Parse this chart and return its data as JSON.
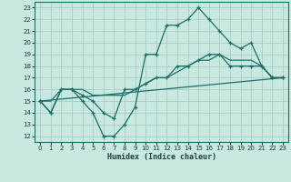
{
  "xlabel": "Humidex (Indice chaleur)",
  "bg_color": "#c8e8e0",
  "grid_color": "#a8ccc8",
  "line_color": "#1a7068",
  "xlim": [
    -0.5,
    23.5
  ],
  "ylim": [
    11.5,
    23.5
  ],
  "yticks": [
    12,
    13,
    14,
    15,
    16,
    17,
    18,
    19,
    20,
    21,
    22,
    23
  ],
  "xticks": [
    0,
    1,
    2,
    3,
    4,
    5,
    6,
    7,
    8,
    9,
    10,
    11,
    12,
    13,
    14,
    15,
    16,
    17,
    18,
    19,
    20,
    21,
    22,
    23
  ],
  "line1_x": [
    0,
    1,
    2,
    3,
    4,
    5,
    6,
    7,
    8,
    9,
    10,
    11,
    12,
    13,
    14,
    15,
    16,
    17,
    18,
    19,
    20,
    21,
    22,
    23
  ],
  "line1_y": [
    15,
    14,
    16,
    16,
    15,
    14,
    12,
    12,
    13,
    14.5,
    19,
    19,
    21.5,
    21.5,
    22,
    23,
    22,
    21,
    20,
    19.5,
    20,
    18,
    17,
    17
  ],
  "line2_x": [
    0,
    1,
    2,
    3,
    4,
    5,
    6,
    7,
    8,
    9,
    10,
    11,
    12,
    13,
    14,
    15,
    16,
    17,
    18,
    19,
    20,
    21,
    22,
    23
  ],
  "line2_y": [
    15,
    14,
    16,
    16,
    15.5,
    15,
    14,
    13.5,
    16,
    16,
    16.5,
    17,
    17,
    18,
    18,
    18.5,
    19,
    19,
    18,
    18,
    18,
    18,
    17,
    17
  ],
  "line3_x": [
    0,
    1,
    2,
    3,
    4,
    5,
    6,
    7,
    8,
    9,
    10,
    11,
    12,
    13,
    14,
    15,
    16,
    17,
    18,
    19,
    20,
    21,
    22,
    23
  ],
  "line3_y": [
    15,
    15,
    16,
    16,
    16,
    15.5,
    15.5,
    15.5,
    15.5,
    16,
    16.5,
    17,
    17,
    17.5,
    18,
    18.5,
    18.5,
    19,
    18.5,
    18.5,
    18.5,
    18,
    17,
    17
  ],
  "line4_x": [
    0,
    23
  ],
  "line4_y": [
    15.0,
    17.0
  ]
}
